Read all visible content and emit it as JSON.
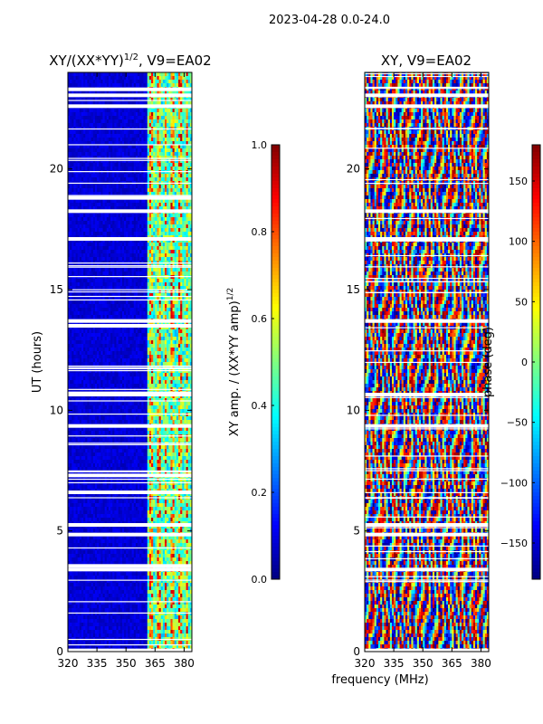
{
  "figure_title": "2023-04-28 0.0-24.0",
  "shared_xlabel": "frequency (MHz)",
  "chart_data": [
    {
      "type": "heatmap",
      "title": "XY/(XX*YY)",
      "title_sup": "1/2",
      "title_suffix": ", V9=EA02",
      "xlabel": "",
      "ylabel": "UT (hours)",
      "xlim": [
        320,
        384
      ],
      "ylim": [
        0,
        24
      ],
      "xticks": [
        320,
        335,
        350,
        365,
        380
      ],
      "yticks": [
        0,
        5,
        10,
        15,
        20
      ],
      "description_values": "normalized XY amplitude, low (~0.1) below 360 MHz, high (0.4-0.95) in 360-384 MHz band",
      "low_band": {
        "freq_range": [
          320,
          361
        ],
        "value": 0.08
      },
      "high_band": {
        "freq_range": [
          361,
          384
        ],
        "value_range": [
          0.35,
          0.95
        ]
      },
      "blank_rows_ut": [
        0.05,
        3.4,
        3.55,
        5.25,
        4.85,
        6.6,
        7.3,
        9.35,
        10.65,
        10.7,
        13.5,
        13.7,
        17.1,
        18.25,
        18.8,
        22.6,
        23.05,
        23.3
      ]
    },
    {
      "type": "heatmap",
      "title": "XY, V9=EA02",
      "xlabel": "",
      "ylabel": "",
      "xlim": [
        320,
        384
      ],
      "ylim": [
        0,
        24
      ],
      "xticks": [
        320,
        335,
        350,
        365,
        380
      ],
      "yticks": [
        0,
        5,
        10,
        15,
        20
      ],
      "value_range": [
        -180,
        180
      ],
      "description_values": "XY phase in degrees, spans full -180 to 180 range with vertical striping by frequency",
      "blank_rows_ut": [
        0.05,
        3.4,
        5.25,
        4.85,
        9.35,
        10.65,
        13.7,
        17.1,
        18.25,
        22.6,
        23.05
      ]
    }
  ],
  "colorbars": [
    {
      "label": "XY amp. / (XX*YY amp)",
      "label_sup": "1/2",
      "ticks": [
        "0.0",
        "0.2",
        "0.4",
        "0.6",
        "0.8",
        "1.0"
      ],
      "tick_values": [
        0.0,
        0.2,
        0.4,
        0.6,
        0.8,
        1.0
      ],
      "vmin": 0.0,
      "vmax": 1.0
    },
    {
      "label": "phase (deg)",
      "ticks": [
        "150",
        "100",
        "50",
        "0",
        "−50",
        "−100",
        "−150"
      ],
      "tick_values": [
        150,
        100,
        50,
        0,
        -50,
        -100,
        -150
      ],
      "vmin": -180,
      "vmax": 180
    }
  ]
}
